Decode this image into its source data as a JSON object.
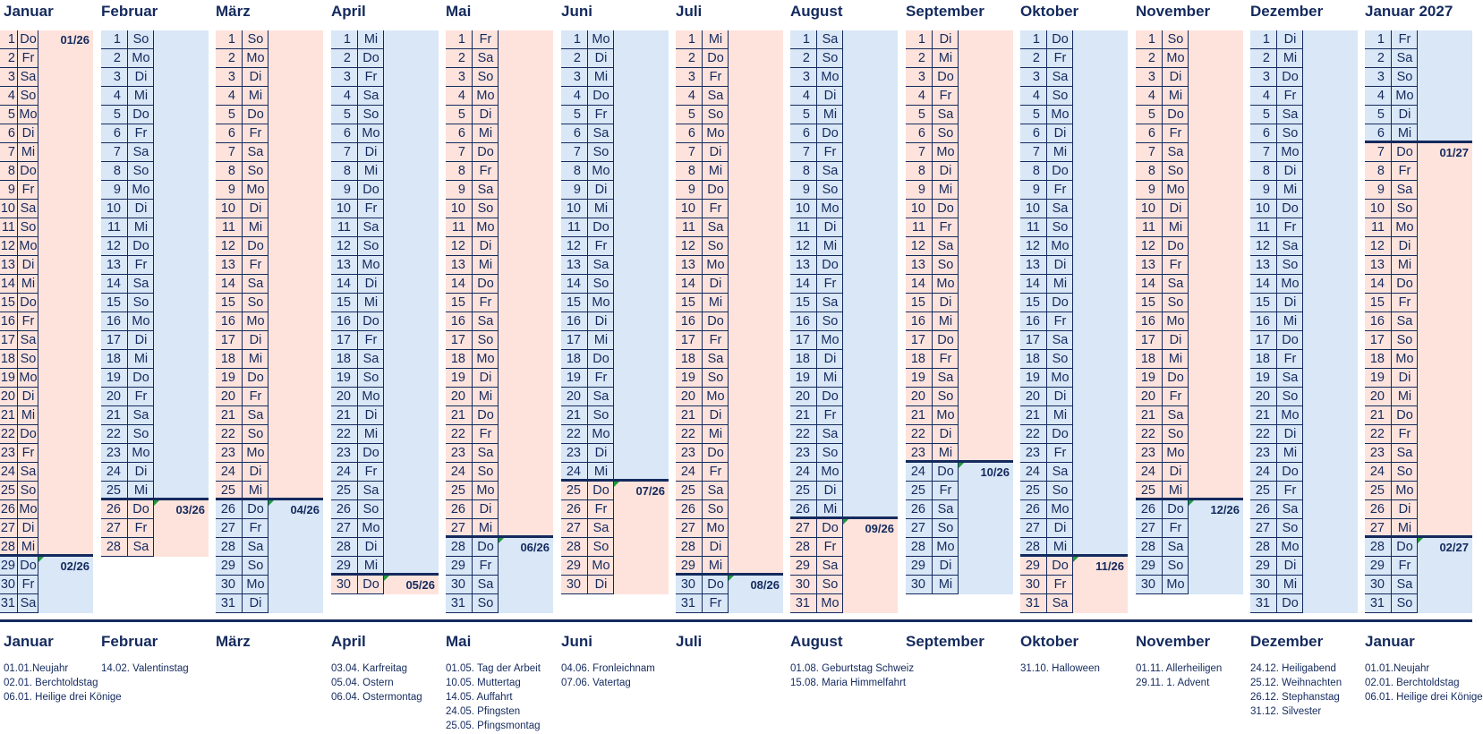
{
  "colors": {
    "pink": "#fde3dc",
    "blue": "#d9e7f6",
    "navy": "#142a5e",
    "marker": "#1f9a3a"
  },
  "months": [
    {
      "name": "Januar",
      "wd": "Do Fr Sa So Mo Di Mi Do Fr Sa So Mo Di Mi Do Fr Sa So Mo Di Mi Do Fr Sa So Mo Di Mi Do Fr Sa"
    },
    {
      "name": "Februar",
      "wd": "So Mo Di Mi Do Fr Sa So Mo Di Mi Do Fr Sa So Mo Di Mi Do Fr Sa So Mo Di Mi Do Fr Sa"
    },
    {
      "name": "März",
      "wd": "So Mo Di Mi Do Fr Sa So Mo Di Mi Do Fr Sa So Mo Di Mi Do Fr Sa So Mo Di Mi Do Fr Sa So Mo Di"
    },
    {
      "name": "April",
      "wd": "Mi Do Fr Sa So Mo Di Mi Do Fr Sa So Mo Di Mi Do Fr Sa So Mo Di Mi Do Fr Sa So Mo Di Mi Do"
    },
    {
      "name": "Mai",
      "wd": "Fr Sa So Mo Di Mi Do Fr Sa So Mo Di Mi Do Fr Sa So Mo Di Mi Do Fr Sa So Mo Di Mi Do Fr Sa So"
    },
    {
      "name": "Juni",
      "wd": "Mo Di Mi Do Fr Sa So Mo Di Mi Do Fr Sa So Mo Di Mi Do Fr Sa So Mo Di Mi Do Fr Sa So Mo Di"
    },
    {
      "name": "Juli",
      "wd": "Mi Do Fr Sa So Mo Di Mi Do Fr Sa So Mo Di Mi Do Fr Sa So Mo Di Mi Do Fr Sa So Mo Di Mi Do Fr"
    },
    {
      "name": "August",
      "wd": "Sa So Mo Di Mi Do Fr Sa So Mo Di Mi Do Fr Sa So Mo Di Mi Do Fr Sa So Mo Di Mi Do Fr Sa So Mo"
    },
    {
      "name": "September",
      "wd": "Di Mi Do Fr Sa So Mo Di Mi Do Fr Sa So Mo Di Mi Do Fr Sa So Mo Di Mi Do Fr Sa So Mo Di Mi"
    },
    {
      "name": "Oktober",
      "wd": "Do Fr Sa So Mo Di Mi Do Fr Sa So Mo Di Mi Do Fr Sa So Mo Di Mi Do Fr Sa So Mo Di Mi Do Fr Sa"
    },
    {
      "name": "November",
      "wd": "So Mo Di Mi Do Fr Sa So Mo Di Mi Do Fr Sa So Mo Di Mi Do Fr Sa So Mo Di Mi Do Fr Sa So Mo"
    },
    {
      "name": "Dezember",
      "wd": "Di Mi Do Fr Sa So Mo Di Mi Do Fr Sa So Mo Di Mi Do Fr Sa So Mo Di Mi Do Fr Sa So Mo Di Mi Do"
    },
    {
      "name": "Januar 2027",
      "wd": "Fr Sa So Mo Di Mi Do Fr Sa So Mo Di Mi Do Fr Sa So Mo Di Mi Do Fr Sa So Mo Di Mi Do Fr Sa So"
    }
  ],
  "periods": [
    {
      "label": "01/26",
      "month": 0,
      "day": 1,
      "color": "pink",
      "marker": false
    },
    {
      "label": "02/26",
      "month": 0,
      "day": 29,
      "color": "blue",
      "marker": true
    },
    {
      "label": "03/26",
      "month": 1,
      "day": 26,
      "color": "pink",
      "marker": true
    },
    {
      "label": "04/26",
      "month": 2,
      "day": 26,
      "color": "blue",
      "marker": true
    },
    {
      "label": "05/26",
      "month": 3,
      "day": 30,
      "color": "pink",
      "marker": true
    },
    {
      "label": "06/26",
      "month": 4,
      "day": 28,
      "color": "blue",
      "marker": true
    },
    {
      "label": "07/26",
      "month": 5,
      "day": 25,
      "color": "pink",
      "marker": true
    },
    {
      "label": "08/26",
      "month": 6,
      "day": 30,
      "color": "blue",
      "marker": true
    },
    {
      "label": "09/26",
      "month": 7,
      "day": 27,
      "color": "pink",
      "marker": true
    },
    {
      "label": "10/26",
      "month": 8,
      "day": 24,
      "color": "blue",
      "marker": true
    },
    {
      "label": "11/26",
      "month": 9,
      "day": 29,
      "color": "pink",
      "marker": true
    },
    {
      "label": "12/26",
      "month": 10,
      "day": 26,
      "color": "blue",
      "marker": true
    },
    {
      "label": "01/27",
      "month": 12,
      "day": 7,
      "color": "pink",
      "marker": false
    },
    {
      "label": "02/27",
      "month": 12,
      "day": 28,
      "color": "blue",
      "marker": true
    }
  ],
  "holidays": [
    {
      "month": "Januar",
      "items": [
        "01.01.Neujahr",
        "02.01. Berchtoldstag",
        "06.01. Heilige drei Könige"
      ]
    },
    {
      "month": "Februar",
      "items": [
        "14.02. Valentinstag"
      ]
    },
    {
      "month": "März",
      "items": []
    },
    {
      "month": "April",
      "items": [
        "03.04. Karfreitag",
        "05.04. Ostern",
        "06.04. Ostermontag"
      ]
    },
    {
      "month": "Mai",
      "items": [
        "01.05. Tag der Arbeit",
        "10.05. Muttertag",
        "14.05. Auffahrt",
        "24.05. Pfingsten",
        "25.05. Pfingsmontag"
      ]
    },
    {
      "month": "Juni",
      "items": [
        "04.06. Fronleichnam",
        "07.06. Vatertag"
      ]
    },
    {
      "month": "Juli",
      "items": []
    },
    {
      "month": "August",
      "items": [
        "01.08. Geburtstag Schweiz",
        "15.08. Maria Himmelfahrt"
      ]
    },
    {
      "month": "September",
      "items": []
    },
    {
      "month": "Oktober",
      "items": [
        "31.10. Halloween"
      ]
    },
    {
      "month": "November",
      "items": [
        "01.11. Allerheiligen",
        "29.11. 1. Advent"
      ]
    },
    {
      "month": "Dezember",
      "items": [
        "24.12. Heiligabend",
        "25.12. Weihnachten",
        "26.12. Stephanstag",
        "31.12. Silvester"
      ]
    },
    {
      "month": "Januar",
      "items": [
        "01.01.Neujahr",
        "02.01. Berchtoldstag",
        "06.01. Heilige drei Könige"
      ]
    }
  ]
}
